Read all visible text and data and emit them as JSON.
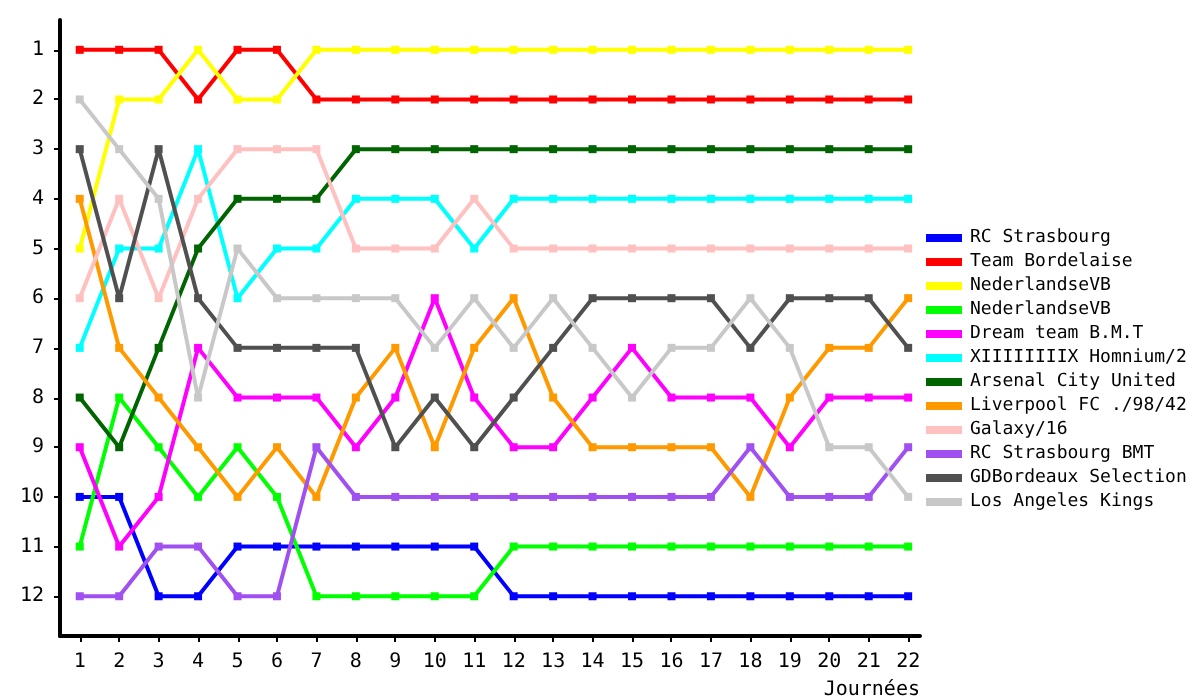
{
  "chart_data": {
    "type": "line",
    "xlabel": "Journées",
    "x": [
      1,
      2,
      3,
      4,
      5,
      6,
      7,
      8,
      9,
      10,
      11,
      12,
      13,
      14,
      15,
      16,
      17,
      18,
      19,
      20,
      21,
      22
    ],
    "xlim": [
      0.5,
      22.3
    ],
    "xticks": [
      1,
      2,
      3,
      4,
      5,
      6,
      7,
      8,
      9,
      10,
      11,
      12,
      13,
      14,
      15,
      16,
      17,
      18,
      19,
      20,
      21,
      22
    ],
    "ylim": [
      12.8,
      0.4
    ],
    "yticks": [
      1,
      2,
      3,
      4,
      5,
      6,
      7,
      8,
      9,
      10,
      11,
      12
    ],
    "grid": false,
    "legend": "right",
    "marker": "square",
    "line_style": "solid",
    "series": [
      {
        "name": "RC Strasbourg",
        "color": "#0000ff",
        "values": [
          10,
          10,
          12,
          12,
          11,
          11,
          11,
          11,
          11,
          11,
          11,
          12,
          12,
          12,
          12,
          12,
          12,
          12,
          12,
          12,
          12,
          12
        ]
      },
      {
        "name": "Team Bordelaise",
        "color": "#ff0000",
        "values": [
          1,
          1,
          1,
          2,
          1,
          1,
          2,
          2,
          2,
          2,
          2,
          2,
          2,
          2,
          2,
          2,
          2,
          2,
          2,
          2,
          2,
          2
        ]
      },
      {
        "name": "NederlandseVB",
        "color": "#ffff00",
        "values": [
          5,
          2,
          2,
          1,
          2,
          2,
          1,
          1,
          1,
          1,
          1,
          1,
          1,
          1,
          1,
          1,
          1,
          1,
          1,
          1,
          1,
          1
        ]
      },
      {
        "name": "NederlandseVB",
        "color": "#00ff00",
        "values": [
          11,
          8,
          9,
          10,
          9,
          10,
          12,
          12,
          12,
          12,
          12,
          11,
          11,
          11,
          11,
          11,
          11,
          11,
          11,
          11,
          11,
          11
        ]
      },
      {
        "name": "Dream team B.M.T",
        "color": "#ff00ff",
        "values": [
          9,
          11,
          10,
          7,
          8,
          8,
          8,
          9,
          8,
          6,
          8,
          9,
          9,
          8,
          7,
          8,
          8,
          8,
          9,
          8,
          8,
          8
        ]
      },
      {
        "name": "XIIIIIIIIX Homnium/2",
        "color": "#00ffff",
        "values": [
          7,
          5,
          5,
          3,
          6,
          5,
          5,
          4,
          4,
          4,
          5,
          4,
          4,
          4,
          4,
          4,
          4,
          4,
          4,
          4,
          4,
          4
        ]
      },
      {
        "name": "Arsenal City United",
        "color": "#006400",
        "values": [
          8,
          9,
          7,
          5,
          4,
          4,
          4,
          3,
          3,
          3,
          3,
          3,
          3,
          3,
          3,
          3,
          3,
          3,
          3,
          3,
          3,
          3
        ]
      },
      {
        "name": "Liverpool FC ./98/42",
        "color": "#ff9900",
        "values": [
          4,
          7,
          8,
          9,
          10,
          9,
          10,
          8,
          7,
          9,
          7,
          6,
          8,
          9,
          9,
          9,
          9,
          10,
          8,
          7,
          7,
          6
        ]
      },
      {
        "name": "Galaxy/16",
        "color": "#ffc0c0",
        "values": [
          6,
          4,
          6,
          4,
          3,
          3,
          3,
          5,
          5,
          5,
          4,
          5,
          5,
          5,
          5,
          5,
          5,
          5,
          5,
          5,
          5,
          5
        ]
      },
      {
        "name": "RC Strasbourg BMT",
        "color": "#a050f0",
        "values": [
          12,
          12,
          11,
          11,
          12,
          12,
          9,
          10,
          10,
          10,
          10,
          10,
          10,
          10,
          10,
          10,
          10,
          9,
          10,
          10,
          10,
          9
        ]
      },
      {
        "name": "GDBordeaux Selection",
        "color": "#505050",
        "values": [
          3,
          6,
          3,
          6,
          7,
          7,
          7,
          7,
          9,
          8,
          9,
          8,
          7,
          6,
          6,
          6,
          6,
          7,
          6,
          6,
          6,
          7
        ]
      },
      {
        "name": "Los Angeles Kings",
        "color": "#c8c8c8",
        "values": [
          2,
          3,
          4,
          8,
          5,
          6,
          6,
          6,
          6,
          7,
          6,
          7,
          6,
          7,
          8,
          7,
          7,
          6,
          7,
          9,
          9,
          10
        ]
      }
    ]
  }
}
